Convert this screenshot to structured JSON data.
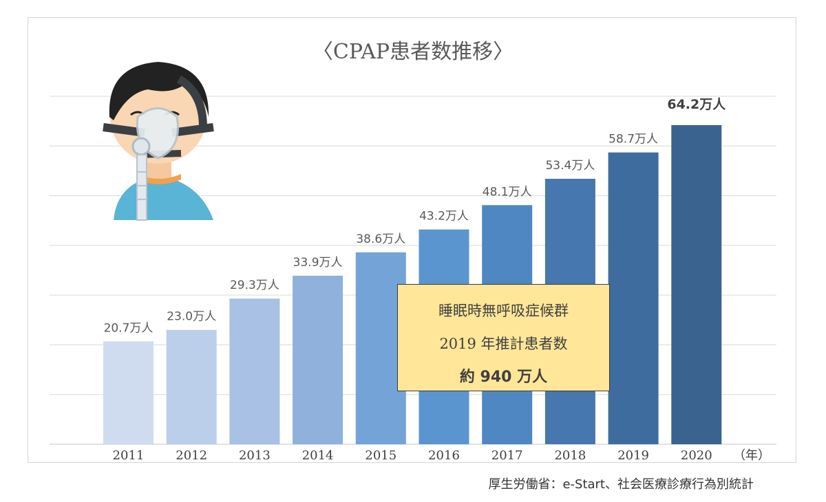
{
  "title": "〈CPAP患者数推移〉",
  "callout": {
    "line1": "睡眠時無呼吸症候群",
    "line2": "2019 年推計患者数",
    "line3": "約 940 万人"
  },
  "source": "厚生労働省：e-Start、社会医療診療行為別統計",
  "colors": {
    "bars": [
      "#cfdcf0",
      "#bccfea",
      "#a8c1e4",
      "#90b1dc",
      "#74a3d8",
      "#5b95cf",
      "#4f87c2",
      "#4677ae",
      "#3f6c9e",
      "#3a638f"
    ],
    "callout_fill": "#ffe699",
    "gridline": "#d9d9d9"
  },
  "icon": "cpap-mask-patient-illustration",
  "chart_data": {
    "type": "bar",
    "categories": [
      "2011",
      "2012",
      "2013",
      "2014",
      "2015",
      "2016",
      "2017",
      "2018",
      "2019",
      "2020"
    ],
    "values": [
      20.7,
      23.0,
      29.3,
      33.9,
      38.6,
      43.2,
      48.1,
      53.4,
      58.7,
      64.2
    ],
    "data_labels": [
      "20.7万人",
      "23.0万人",
      "29.3万人",
      "33.9万人",
      "38.6万人",
      "43.2万人",
      "48.1万人",
      "53.4万人",
      "58.7万人",
      "64.2万人"
    ],
    "x_unit_label": "（年）",
    "ylim": [
      0,
      70
    ],
    "grid": true,
    "highlight_last_label_bold": true
  }
}
